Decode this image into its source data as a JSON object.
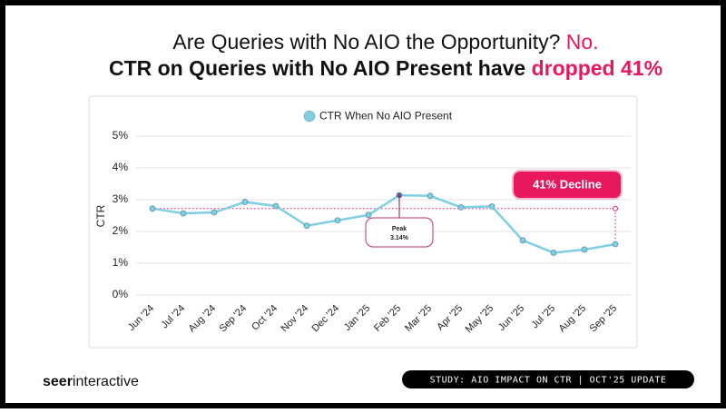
{
  "chart_data": {
    "type": "line",
    "title": {
      "line1": "Are Queries with No AIO the Opportunity?",
      "line1_accent": "No.",
      "line2": "CTR on Queries with No AIO Present have",
      "line2_accent": "dropped 41%"
    },
    "y_label": "CTR",
    "categories": [
      "Jun '24",
      "Jul '24",
      "Aug '24",
      "Sep '24",
      "Oct '24",
      "Nov '24",
      "Dec '24",
      "Jan '25",
      "Feb '25",
      "Mar '25",
      "Apr '25",
      "May '25",
      "Jun '25",
      "Jul '25",
      "Aug '25",
      "Sep '25"
    ],
    "series": [
      {
        "name": "CTR When No AIO Present",
        "color": "#7fcfe3",
        "values": [
          2.72,
          2.57,
          2.6,
          2.93,
          2.8,
          2.18,
          2.35,
          2.52,
          3.14,
          3.12,
          2.76,
          2.79,
          1.72,
          1.33,
          1.43,
          1.6
        ]
      }
    ],
    "ylim": [
      0,
      5
    ],
    "yticks": [
      {
        "value": 0,
        "label": "0%"
      },
      {
        "value": 1,
        "label": "1%"
      },
      {
        "value": 2,
        "label": "2%"
      },
      {
        "value": 3,
        "label": "3%"
      },
      {
        "value": 4,
        "label": "4%"
      },
      {
        "value": 5,
        "label": "5%"
      }
    ],
    "grid": true,
    "annotations": {
      "peak_title": "Peak",
      "peak_value": "3.14%",
      "decline": "41% Decline"
    },
    "accent_color": "#e8185e"
  },
  "footer": {
    "logo_bold": "seer",
    "logo_regular": "interactive",
    "badge": "STUDY: AIO IMPACT ON CTR | OCT'25 UPDATE"
  }
}
